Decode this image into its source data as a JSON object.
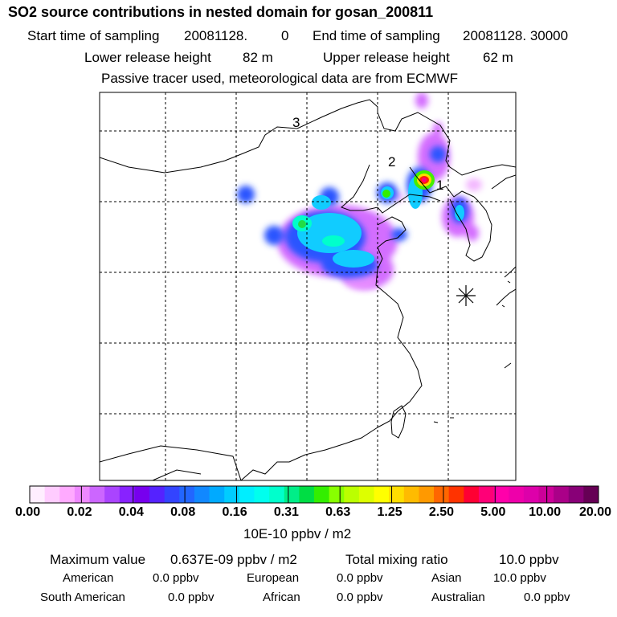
{
  "title": "SO2 source contributions in nested domain for gosan_200811",
  "sampling": {
    "start_label": "Start time of sampling",
    "start_value": "20081128.",
    "start_hour": "0",
    "end_label": "End time of sampling",
    "end_value": "20081128. 30000"
  },
  "release": {
    "lower_label": "Lower release height",
    "lower_value": "82 m",
    "upper_label": "Upper release height",
    "upper_value": "62 m"
  },
  "note": "Passive tracer used, meteorological data are from ECMWF",
  "map": {
    "markers": [
      {
        "label": "1"
      },
      {
        "label": "2"
      },
      {
        "label": "3"
      }
    ],
    "receptor_symbol": "star-asterisk-icon"
  },
  "colorbar": {
    "ticks": [
      "0.00",
      "0.02",
      "0.04",
      "0.08",
      "0.16",
      "0.31",
      "0.63",
      "1.25",
      "2.50",
      "5.00",
      "10.00",
      "20.00"
    ],
    "unit": "10E-10 ppbv / m2",
    "colors": [
      "#ffeeff",
      "#ffccff",
      "#ffaaff",
      "#ee88ff",
      "#cc66ff",
      "#aa44ff",
      "#8822ff",
      "#7700ee",
      "#5522ff",
      "#3344ff",
      "#2266ff",
      "#1188ff",
      "#00aaff",
      "#00ccff",
      "#00eeff",
      "#00ffee",
      "#00ffcc",
      "#00ee88",
      "#00dd44",
      "#33ee00",
      "#88ff00",
      "#bbff00",
      "#ddff00",
      "#ffff00",
      "#ffdd00",
      "#ffbb00",
      "#ff9900",
      "#ff6600",
      "#ff3300",
      "#ff0033",
      "#ff0077",
      "#ff00aa",
      "#ee00aa",
      "#dd00aa",
      "#cc0099",
      "#aa0088",
      "#880077",
      "#660055"
    ]
  },
  "summary": {
    "max_label": "Maximum value",
    "max_value": "0.637E-09 ppbv / m2",
    "total_label": "Total mixing ratio",
    "total_value": "10.0 ppbv",
    "regions": [
      {
        "name": "American",
        "value": "0.0 ppbv"
      },
      {
        "name": "European",
        "value": "0.0 ppbv"
      },
      {
        "name": "Asian",
        "value": "10.0 ppbv"
      },
      {
        "name": "South American",
        "value": "0.0 ppbv"
      },
      {
        "name": "African",
        "value": "0.0 ppbv"
      },
      {
        "name": "Australian",
        "value": "0.0 ppbv"
      }
    ]
  }
}
